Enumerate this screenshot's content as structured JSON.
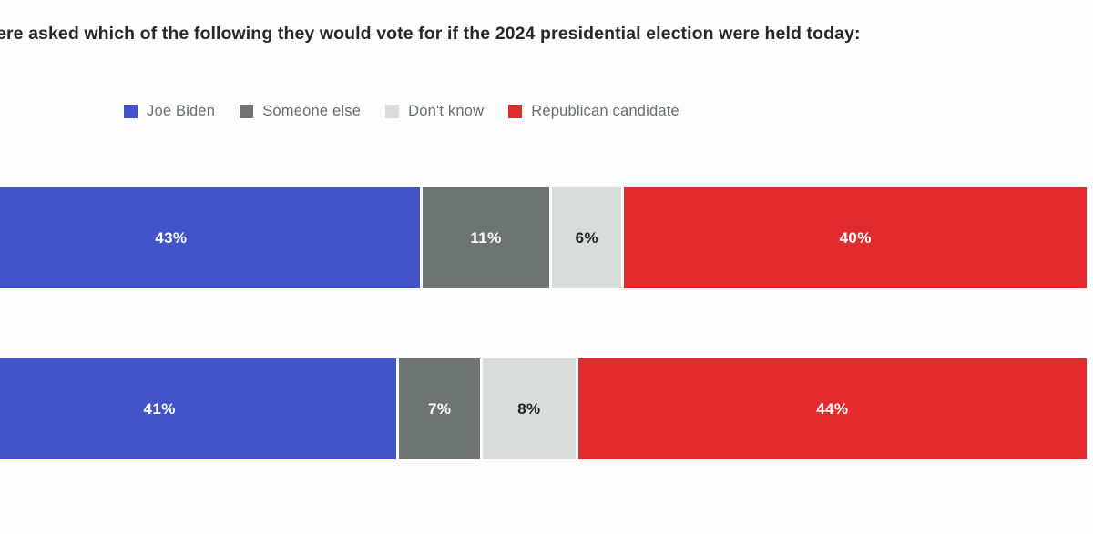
{
  "title": "ere asked which of the following they would vote for if the 2024 presidential election were held today:",
  "legend": {
    "position": "top",
    "items": [
      {
        "label": "Joe Biden",
        "color": "#4353c9"
      },
      {
        "label": "Someone else",
        "color": "#6d7472"
      },
      {
        "label": "Don't know",
        "color": "#d9dcda"
      },
      {
        "label": "Republican candidate",
        "color": "#e32a2f"
      }
    ]
  },
  "chart_data": {
    "type": "bar",
    "variant": "horizontal-stacked-100",
    "title": "ere asked which of the following they would vote for if the 2024 presidential election were held today:",
    "rows": 2,
    "series": [
      {
        "name": "Joe Biden",
        "color": "#4353c9",
        "label_color": "#ffffff",
        "values": [
          43,
          41
        ]
      },
      {
        "name": "Someone else",
        "color": "#6d7472",
        "label_color": "#ffffff",
        "values": [
          11,
          7
        ]
      },
      {
        "name": "Don't know",
        "color": "#d9dcda",
        "label_color": "#1f2123",
        "values": [
          6,
          8
        ]
      },
      {
        "name": "Republican candidate",
        "color": "#e32a2f",
        "label_color": "#ffffff",
        "values": [
          40,
          44
        ]
      }
    ],
    "value_suffix": "%",
    "xlim": [
      0,
      100
    ],
    "legend_position": "top",
    "grid": false,
    "background_color": "#fdfdfd",
    "title_color": "#26282b",
    "legend_text_color": "#676c70"
  }
}
